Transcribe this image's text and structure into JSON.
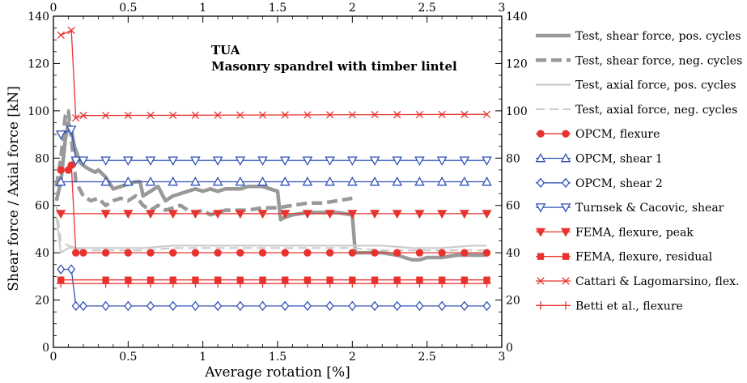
{
  "chart_data": {
    "type": "line",
    "xlabel": "Average rotation [%]",
    "ylabel": "Shear force / Axial force [kN]",
    "xlim": [
      0,
      3
    ],
    "ylim": [
      0,
      140
    ],
    "xticks": [
      0,
      0.5,
      1,
      1.5,
      2,
      2.5,
      3
    ],
    "yticks": [
      0,
      20,
      40,
      60,
      80,
      100,
      120,
      140
    ],
    "xtick_labels": [
      "0",
      "0.5",
      "1",
      "1.5",
      "2",
      "2.5",
      "3"
    ],
    "ytick_labels": [
      "0",
      "20",
      "40",
      "60",
      "80",
      "100",
      "120",
      "140"
    ],
    "grid": false,
    "legend_placement": "right, outside plot",
    "annotations": [
      "TUA",
      "Masonry spandrel with timber lintel"
    ],
    "series": [
      {
        "name": "Test, shear force, pos. cycles",
        "color": "#999999",
        "style": "thick-solid",
        "marker": "none",
        "x": [
          0.02,
          0.05,
          0.08,
          0.1,
          0.12,
          0.14,
          0.18,
          0.22,
          0.28,
          0.3,
          0.35,
          0.4,
          0.45,
          0.5,
          0.55,
          0.58,
          0.6,
          0.65,
          0.7,
          0.75,
          0.8,
          0.85,
          0.9,
          0.95,
          1.0,
          1.05,
          1.1,
          1.15,
          1.2,
          1.25,
          1.3,
          1.35,
          1.4,
          1.45,
          1.5,
          1.52,
          1.55,
          1.6,
          1.7,
          1.8,
          1.9,
          2.0,
          2.02,
          2.05,
          2.1,
          2.2,
          2.3,
          2.4,
          2.45,
          2.5,
          2.6,
          2.7,
          2.8,
          2.9
        ],
        "values": [
          62,
          70,
          88,
          95,
          92,
          85,
          78,
          76,
          74,
          75,
          72,
          67,
          68,
          69,
          70,
          70,
          64,
          66,
          68,
          62,
          64,
          65,
          66,
          67,
          66,
          67,
          66,
          67,
          67,
          67,
          68,
          68,
          68,
          67,
          66,
          54,
          55,
          56,
          57,
          57,
          57,
          56,
          40,
          40,
          40,
          40,
          39,
          37,
          37,
          38,
          38,
          39,
          39,
          39
        ]
      },
      {
        "name": "Test, shear force, neg. cycles",
        "color": "#999999",
        "style": "thick-dashed",
        "marker": "none",
        "x": [
          0.02,
          0.05,
          0.08,
          0.1,
          0.12,
          0.15,
          0.2,
          0.25,
          0.3,
          0.35,
          0.4,
          0.45,
          0.5,
          0.55,
          0.6,
          0.65,
          0.7,
          0.75,
          0.8,
          0.85,
          0.9,
          0.95,
          1.0,
          1.05,
          1.1,
          1.15,
          1.2,
          1.3,
          1.4,
          1.5,
          1.6,
          1.7,
          1.8,
          1.9,
          2.0
        ],
        "values": [
          68,
          80,
          98,
          100,
          88,
          70,
          64,
          62,
          63,
          60,
          62,
          63,
          62,
          64,
          60,
          58,
          60,
          58,
          59,
          60,
          58,
          57,
          58,
          56,
          57,
          58,
          58,
          58,
          59,
          59,
          60,
          61,
          61,
          62,
          63
        ]
      },
      {
        "name": "Test, axial force, pos. cycles",
        "color": "#cccccc",
        "style": "solid",
        "marker": "none",
        "x": [
          0.02,
          0.05,
          0.1,
          0.15,
          0.2,
          0.4,
          0.6,
          0.8,
          1.0,
          1.2,
          1.4,
          1.6,
          1.8,
          2.0,
          2.2,
          2.4,
          2.6,
          2.8,
          2.9
        ],
        "values": [
          55,
          40,
          42,
          42,
          42,
          42,
          42,
          43,
          43,
          43,
          43,
          43,
          43,
          43,
          43,
          42,
          42,
          43,
          43
        ]
      },
      {
        "name": "Test, axial force, neg. cycles",
        "color": "#cccccc",
        "style": "dashed",
        "marker": "none",
        "x": [
          0.02,
          0.05,
          0.1,
          0.15,
          0.2,
          0.4,
          0.6,
          0.8,
          1.0,
          1.2,
          1.4,
          1.6,
          1.8,
          2.0,
          2.2,
          2.4,
          2.6,
          2.8,
          2.9
        ],
        "values": [
          60,
          45,
          43,
          42,
          41,
          41,
          41,
          42,
          42,
          42,
          42,
          42,
          42,
          42,
          41,
          41,
          41,
          41,
          41
        ]
      },
      {
        "name": "OPCM, flexure",
        "color": "#e8322e",
        "style": "solid",
        "marker": "circle",
        "x": [
          0.05,
          0.1,
          0.12,
          0.15,
          0.2,
          2.9
        ],
        "values": [
          75,
          75,
          77,
          40,
          40,
          40
        ]
      },
      {
        "name": "OPCM, shear 1",
        "color": "#3050b8",
        "style": "solid",
        "marker": "triangle-up",
        "x": [
          0.05,
          2.9
        ],
        "values": [
          70,
          70
        ]
      },
      {
        "name": "OPCM, shear 2",
        "color": "#3050b8",
        "style": "solid",
        "marker": "diamond",
        "x": [
          0.05,
          0.12,
          0.15,
          0.2,
          2.9
        ],
        "values": [
          33,
          33,
          17.5,
          17.5,
          17.5
        ]
      },
      {
        "name": "Turnsek & Cacovic, shear",
        "color": "#3050b8",
        "style": "solid",
        "marker": "triangle-down",
        "x": [
          0.05,
          0.12,
          0.15,
          0.2,
          2.9
        ],
        "values": [
          90,
          92,
          79,
          79,
          79
        ]
      },
      {
        "name": "FEMA, flexure, peak",
        "color": "#e8322e",
        "style": "solid",
        "marker": "triangle-down-filled",
        "x": [
          0.05,
          2.9
        ],
        "values": [
          56.5,
          56.5
        ]
      },
      {
        "name": "FEMA, flexure, residual",
        "color": "#e8322e",
        "style": "solid",
        "marker": "square",
        "x": [
          0.05,
          2.9
        ],
        "values": [
          28.5,
          28.5
        ]
      },
      {
        "name": "Cattari & Lagomarsino, flex.",
        "color": "#e8322e",
        "style": "solid",
        "marker": "x",
        "x": [
          0.05,
          0.12,
          0.15,
          0.2,
          2.9
        ],
        "values": [
          132,
          134,
          97,
          98,
          98.5
        ]
      },
      {
        "name": "Betti et al., flexure",
        "color": "#e8322e",
        "style": "solid",
        "marker": "plus",
        "x": [
          0.05,
          2.9
        ],
        "values": [
          27,
          27
        ]
      }
    ]
  }
}
